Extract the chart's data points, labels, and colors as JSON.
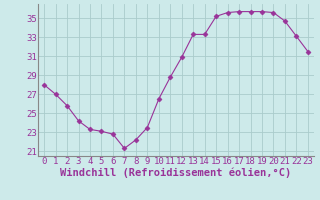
{
  "x": [
    0,
    1,
    2,
    3,
    4,
    5,
    6,
    7,
    8,
    9,
    10,
    11,
    12,
    13,
    14,
    15,
    16,
    17,
    18,
    19,
    20,
    21,
    22,
    23
  ],
  "y": [
    28.0,
    27.0,
    25.8,
    24.2,
    23.3,
    23.1,
    22.8,
    21.3,
    22.2,
    23.5,
    26.5,
    28.8,
    30.9,
    33.3,
    33.3,
    35.2,
    35.6,
    35.7,
    35.7,
    35.7,
    35.6,
    34.7,
    33.1,
    31.5
  ],
  "line_color": "#993399",
  "marker": "D",
  "marker_size": 2.5,
  "bg_color": "#cdeaea",
  "grid_color": "#aacccc",
  "xlabel": "Windchill (Refroidissement éolien,°C)",
  "xlabel_fontsize": 7.5,
  "tick_color": "#993399",
  "tick_fontsize": 6.5,
  "ylim": [
    20.5,
    36.5
  ],
  "yticks": [
    21,
    23,
    25,
    27,
    29,
    31,
    33,
    35
  ],
  "xlim": [
    -0.5,
    23.5
  ],
  "xticks": [
    0,
    1,
    2,
    3,
    4,
    5,
    6,
    7,
    8,
    9,
    10,
    11,
    12,
    13,
    14,
    15,
    16,
    17,
    18,
    19,
    20,
    21,
    22,
    23
  ],
  "spine_color": "#888888",
  "linewidth": 0.8
}
